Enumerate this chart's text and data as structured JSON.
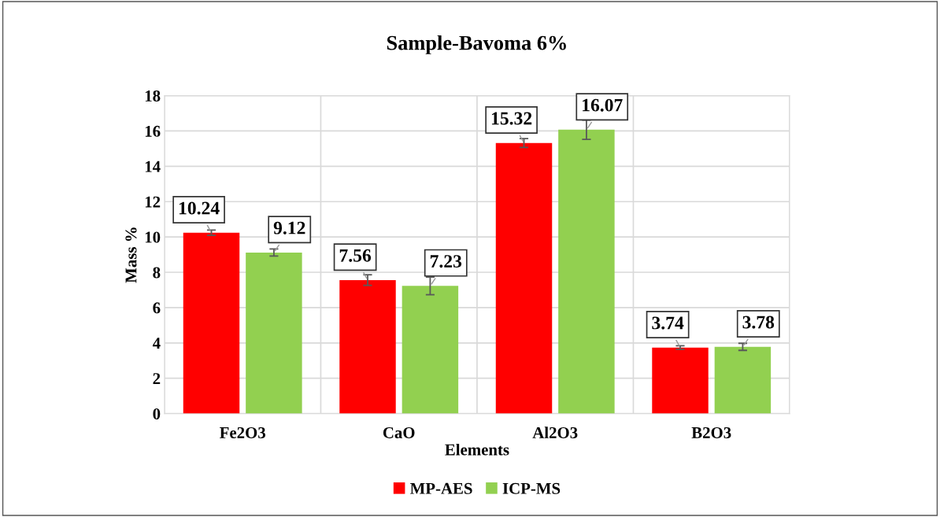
{
  "chart_data": {
    "type": "bar",
    "title": "Sample-Bavoma 6%",
    "xlabel": "Elements",
    "ylabel": "Mass %",
    "categories": [
      "Fe2O3",
      "CaO",
      "Al2O3",
      "B2O3"
    ],
    "series": [
      {
        "name": "MP-AES",
        "color": "#ff0000",
        "values": [
          10.24,
          7.56,
          15.32,
          3.74
        ],
        "errors": [
          0.15,
          0.3,
          0.25,
          0.1
        ]
      },
      {
        "name": "ICP-MS",
        "color": "#92d050",
        "values": [
          9.12,
          7.23,
          16.07,
          3.78
        ],
        "errors": [
          0.2,
          0.5,
          0.55,
          0.2
        ]
      }
    ],
    "ylim": [
      0,
      18
    ],
    "yticks": [
      0,
      2,
      4,
      6,
      8,
      10,
      12,
      14,
      16,
      18
    ],
    "grid": true,
    "legend": "bottom",
    "data_labels": true
  }
}
